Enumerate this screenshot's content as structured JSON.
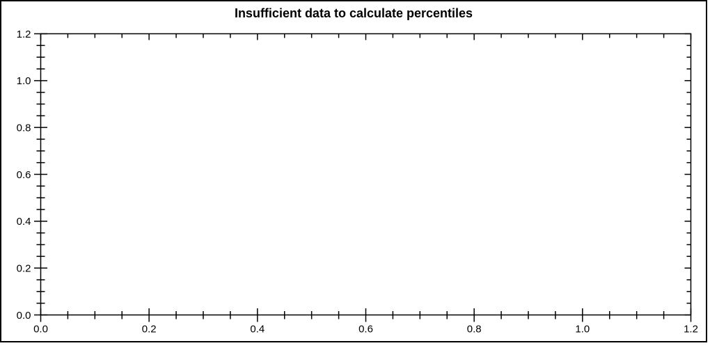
{
  "figure": {
    "background": "#ffffff",
    "border_color": "#000000"
  },
  "chart_data": {
    "type": "scatter",
    "title": "Insufficient data to calculate percentiles",
    "series": [],
    "xlabel": "",
    "ylabel": "",
    "xlim": [
      0.0,
      1.2
    ],
    "ylim": [
      0.0,
      1.2
    ],
    "x_major_ticks": [
      0.0,
      0.2,
      0.4,
      0.6,
      0.8,
      1.0,
      1.2
    ],
    "x_tick_labels": [
      "0.0",
      "0.2",
      "0.4",
      "0.6",
      "0.8",
      "1.0",
      "1.2"
    ],
    "y_major_ticks": [
      0.0,
      0.2,
      0.4,
      0.6,
      0.8,
      1.0,
      1.2
    ],
    "y_tick_labels": [
      "0.0",
      "0.2",
      "0.4",
      "0.6",
      "0.8",
      "1.0",
      "1.2"
    ],
    "minor_tick_step": 0.05,
    "grid": false,
    "legend": false,
    "axis_color": "#000000",
    "text_color": "#000000",
    "tick_label_font_size": 15,
    "title_font_size": 18
  }
}
